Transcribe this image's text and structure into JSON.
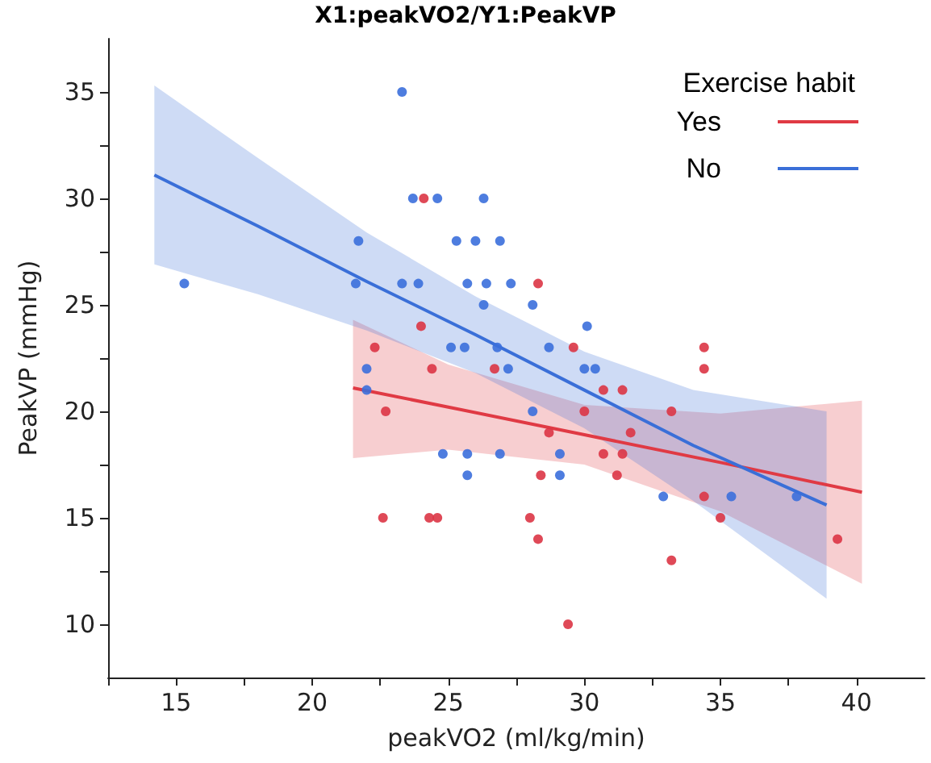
{
  "chart_data": {
    "type": "scatter",
    "title": "X1:peakVO2/Y1:PeakVP",
    "xlabel": "peakVO2 (ml/kg/min)",
    "ylabel": "PeakVP (mmHg)",
    "legend_title": "Exercise habit",
    "xlim": [
      12.5,
      42.5
    ],
    "ylim": [
      7.5,
      37.5
    ],
    "xticks": [
      {
        "value": 12.5,
        "label": null
      },
      15,
      {
        "value": 17.5,
        "label": null
      },
      20,
      {
        "value": 22.5,
        "label": null
      },
      25,
      {
        "value": 27.5,
        "label": null
      },
      30,
      {
        "value": 32.5,
        "label": null
      },
      35,
      {
        "value": 37.5,
        "label": null
      },
      40
    ],
    "yticks": [
      10,
      {
        "value": 12.5,
        "label": null
      },
      15,
      {
        "value": 17.5,
        "label": null
      },
      20,
      {
        "value": 22.5,
        "label": null
      },
      25,
      {
        "value": 27.5,
        "label": null
      },
      30,
      {
        "value": 32.5,
        "label": null
      },
      35
    ],
    "grid": false,
    "legend": "top right",
    "marker": "circle",
    "series": [
      {
        "color": "#dc3545",
        "x": [
          24.1,
          28.3,
          24.0,
          22.3,
          29.6,
          34.4,
          24.4,
          26.7,
          34.4,
          30.7,
          31.4,
          30.0,
          33.2,
          22.7,
          28.7,
          31.7,
          30.7,
          31.4,
          28.4,
          31.2,
          34.4,
          22.6,
          24.3,
          24.6,
          28.0,
          35.0,
          28.3,
          39.3,
          33.2,
          29.4
        ],
        "values": [
          30,
          26,
          24,
          23,
          23,
          23,
          22,
          22,
          22,
          21,
          21,
          20,
          20,
          20,
          19,
          19,
          18,
          18,
          17,
          17,
          16,
          15,
          15,
          15,
          15,
          15,
          14,
          14,
          13,
          10
        ]
      },
      {
        "color": "#3b6fdc",
        "x": [
          15.3,
          23.3,
          23.7,
          24.6,
          26.3,
          21.7,
          25.3,
          26.0,
          26.9,
          21.6,
          23.3,
          23.9,
          25.7,
          26.4,
          27.3,
          26.3,
          28.1,
          30.1,
          25.1,
          25.6,
          26.8,
          28.7,
          22.0,
          27.2,
          30.0,
          30.4,
          22.0,
          28.1,
          24.8,
          25.7,
          26.9,
          29.1,
          25.7,
          29.1,
          32.9,
          35.4,
          37.8
        ],
        "values": [
          26,
          35,
          30,
          30,
          30,
          28,
          28,
          28,
          28,
          26,
          26,
          26,
          26,
          26,
          26,
          25,
          25,
          24,
          23,
          23,
          23,
          23,
          22,
          22,
          22,
          22,
          21,
          20,
          18,
          18,
          18,
          18,
          17,
          17,
          16,
          16,
          16
        ]
      },
      {
        "type": "line",
        "name": "Yes",
        "marker": "none",
        "color": "#e03a44",
        "x": [
          21.5,
          25,
          30,
          35,
          40.2
        ],
        "values": [
          21.1,
          20.2,
          18.9,
          17.6,
          16.2
        ],
        "lower": [
          17.8,
          18.2,
          17.5,
          15.3,
          11.9
        ],
        "upper": [
          24.3,
          22.2,
          20.3,
          19.9,
          20.5
        ]
      },
      {
        "type": "line",
        "name": "No",
        "marker": "none",
        "color": "#3a6fd8",
        "x": [
          14.2,
          18,
          22,
          26,
          30,
          34,
          38.9
        ],
        "values": [
          31.1,
          28.7,
          26.1,
          23.6,
          21.0,
          18.4,
          15.6
        ],
        "lower": [
          26.9,
          25.5,
          23.8,
          21.8,
          19.2,
          15.8,
          11.2
        ],
        "upper": [
          35.3,
          31.9,
          28.4,
          25.4,
          22.8,
          21.0,
          20.0
        ]
      }
    ]
  }
}
